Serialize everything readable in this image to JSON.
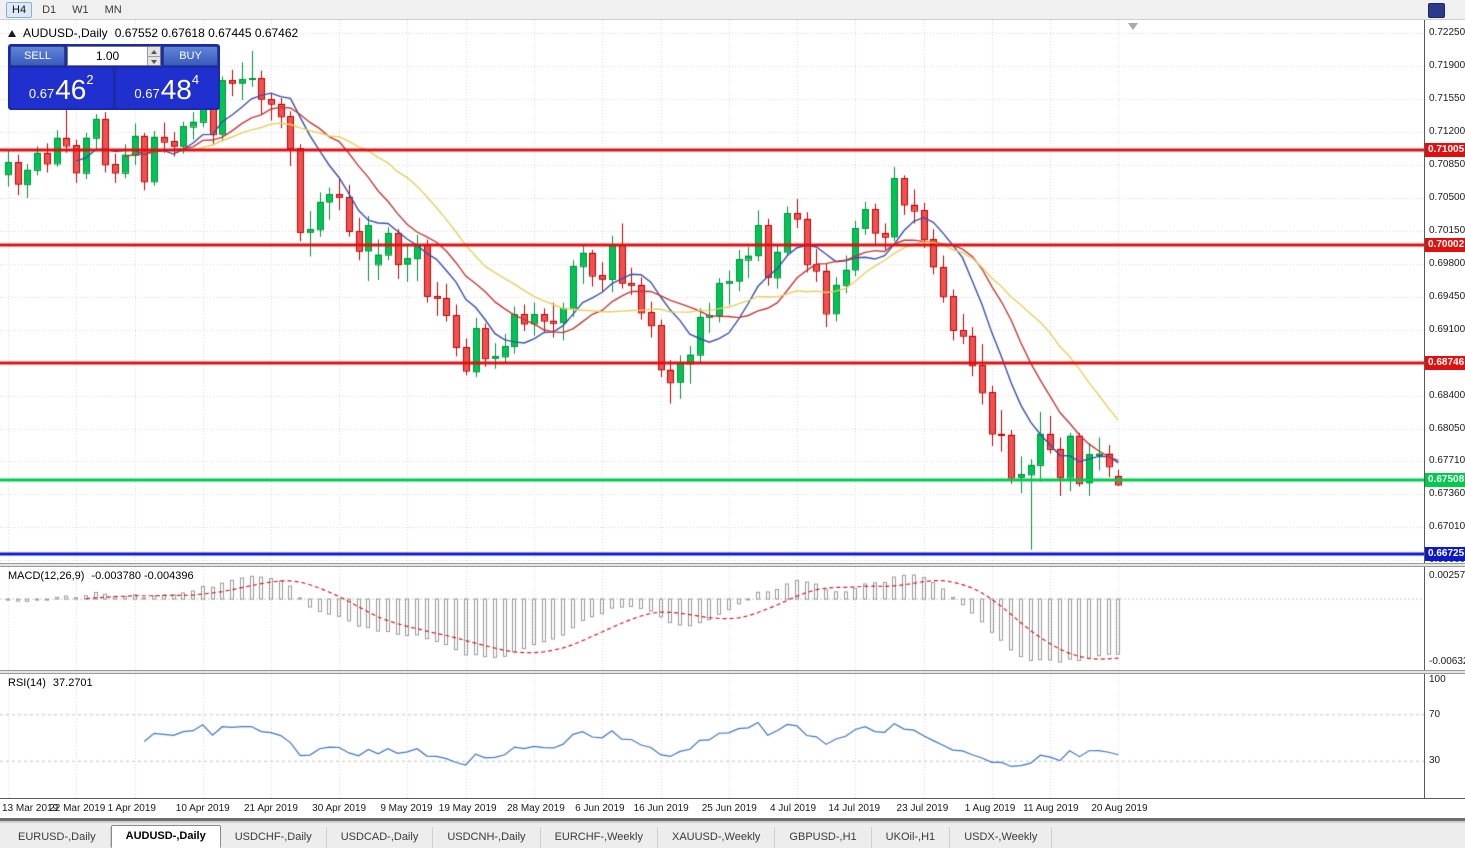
{
  "toolbar": {
    "timeframes": [
      {
        "label": "H4",
        "active": true
      },
      {
        "label": "D1",
        "active": false
      },
      {
        "label": "W1",
        "active": false
      },
      {
        "label": "MN",
        "active": false
      }
    ]
  },
  "chart_header": {
    "symbol_period": "AUDUSD-,Daily",
    "ohlc": "0.67552 0.67618 0.67445 0.67462"
  },
  "trade_panel": {
    "sell_label": "SELL",
    "buy_label": "BUY",
    "volume": "1.00",
    "sell_price": {
      "prefix": "0.67",
      "big": "46",
      "sup": "2"
    },
    "buy_price": {
      "prefix": "0.67",
      "big": "48",
      "sup": "4"
    }
  },
  "bottom_tabs": [
    {
      "label": "EURUSD-,Daily",
      "active": false
    },
    {
      "label": "AUDUSD-,Daily",
      "active": true
    },
    {
      "label": "USDCHF-,Daily",
      "active": false
    },
    {
      "label": "USDCAD-,Daily",
      "active": false
    },
    {
      "label": "USDCNH-,Daily",
      "active": false
    },
    {
      "label": "EURCHF-,Weekly",
      "active": false
    },
    {
      "label": "XAUUSD-,Weekly",
      "active": false
    },
    {
      "label": "GBPUSD-,H1",
      "active": false
    },
    {
      "label": "UKOil-,H1",
      "active": false
    },
    {
      "label": "USDX-,Weekly",
      "active": false
    }
  ],
  "chart_data": {
    "type": "candlestick",
    "symbol": "AUDUSD-",
    "timeframe": "Daily",
    "up_color": "#00c455",
    "up_border": "#00913c",
    "down_color": "#f05050",
    "down_border": "#c00000",
    "y_axis": {
      "labels": [
        "0.72250",
        "0.71900",
        "0.71550",
        "0.71200",
        "0.70850",
        "0.70500",
        "0.70150",
        "0.69800",
        "0.69450",
        "0.69100",
        "0.68750",
        "0.68400",
        "0.68050",
        "0.67710",
        "0.67360",
        "0.67010",
        "0.66660"
      ]
    },
    "x_labels": [
      {
        "text": "13 Mar 2019",
        "index": 0
      },
      {
        "text": "22 Mar 2019",
        "index": 7
      },
      {
        "text": "1 Apr 2019",
        "index": 13
      },
      {
        "text": "10 Apr 2019",
        "index": 20
      },
      {
        "text": "21 Apr 2019",
        "index": 27
      },
      {
        "text": "30 Apr 2019",
        "index": 34
      },
      {
        "text": "9 May 2019",
        "index": 41
      },
      {
        "text": "19 May 2019",
        "index": 47
      },
      {
        "text": "28 May 2019",
        "index": 54
      },
      {
        "text": "6 Jun 2019",
        "index": 61
      },
      {
        "text": "16 Jun 2019",
        "index": 67
      },
      {
        "text": "25 Jun 2019",
        "index": 74
      },
      {
        "text": "4 Jul 2019",
        "index": 81
      },
      {
        "text": "14 Jul 2019",
        "index": 87
      },
      {
        "text": "23 Jul 2019",
        "index": 94
      },
      {
        "text": "1 Aug 2019",
        "index": 101
      },
      {
        "text": "11 Aug 2019",
        "index": 107
      },
      {
        "text": "20 Aug 2019",
        "index": 114
      }
    ],
    "candles": [
      [
        0.7075,
        0.7101,
        0.7062,
        0.7088
      ],
      [
        0.7088,
        0.7096,
        0.7053,
        0.7065
      ],
      [
        0.7065,
        0.7086,
        0.705,
        0.708
      ],
      [
        0.708,
        0.7105,
        0.7074,
        0.7098
      ],
      [
        0.7098,
        0.7108,
        0.7077,
        0.7087
      ],
      [
        0.7087,
        0.7122,
        0.7083,
        0.7114
      ],
      [
        0.7114,
        0.7168,
        0.7098,
        0.7106
      ],
      [
        0.7106,
        0.7112,
        0.7066,
        0.7077
      ],
      [
        0.7077,
        0.7119,
        0.707,
        0.7114
      ],
      [
        0.7114,
        0.7139,
        0.7102,
        0.7134
      ],
      [
        0.7134,
        0.7141,
        0.7077,
        0.7086
      ],
      [
        0.7086,
        0.7097,
        0.7066,
        0.7077
      ],
      [
        0.7077,
        0.7107,
        0.7071,
        0.7096
      ],
      [
        0.7096,
        0.7129,
        0.7085,
        0.7116
      ],
      [
        0.7116,
        0.7119,
        0.7058,
        0.7068
      ],
      [
        0.7068,
        0.7121,
        0.7063,
        0.7115
      ],
      [
        0.7115,
        0.713,
        0.7098,
        0.711
      ],
      [
        0.711,
        0.712,
        0.7094,
        0.7105
      ],
      [
        0.7105,
        0.7131,
        0.7097,
        0.7126
      ],
      [
        0.7126,
        0.7141,
        0.7112,
        0.7131
      ],
      [
        0.7131,
        0.7175,
        0.7125,
        0.7167
      ],
      [
        0.7167,
        0.7173,
        0.7106,
        0.7118
      ],
      [
        0.7118,
        0.7179,
        0.711,
        0.7175
      ],
      [
        0.7175,
        0.7186,
        0.7158,
        0.7172
      ],
      [
        0.7172,
        0.7194,
        0.7154,
        0.7176
      ],
      [
        0.7176,
        0.7206,
        0.7168,
        0.7177
      ],
      [
        0.7177,
        0.7185,
        0.7138,
        0.7155
      ],
      [
        0.7155,
        0.7161,
        0.7132,
        0.715
      ],
      [
        0.715,
        0.7156,
        0.7124,
        0.7137
      ],
      [
        0.7137,
        0.7142,
        0.7084,
        0.7103
      ],
      [
        0.7103,
        0.7107,
        0.7004,
        0.7014
      ],
      [
        0.7014,
        0.7036,
        0.6988,
        0.7017
      ],
      [
        0.7017,
        0.7056,
        0.7009,
        0.7046
      ],
      [
        0.7046,
        0.7061,
        0.7027,
        0.7054
      ],
      [
        0.7054,
        0.707,
        0.7037,
        0.7051
      ],
      [
        0.7051,
        0.7064,
        0.7009,
        0.7015
      ],
      [
        0.7015,
        0.7029,
        0.6984,
        0.6994
      ],
      [
        0.6994,
        0.7031,
        0.6962,
        0.7021
      ],
      [
        0.698,
        0.7006,
        0.6963,
        0.699
      ],
      [
        0.699,
        0.7019,
        0.6984,
        0.7013
      ],
      [
        0.7013,
        0.7017,
        0.6964,
        0.698
      ],
      [
        0.698,
        0.7001,
        0.6961,
        0.6986
      ],
      [
        0.6986,
        0.7011,
        0.6962,
        0.7
      ],
      [
        0.7,
        0.7006,
        0.6939,
        0.6946
      ],
      [
        0.6946,
        0.6961,
        0.6925,
        0.6944
      ],
      [
        0.6944,
        0.6959,
        0.6919,
        0.6926
      ],
      [
        0.6926,
        0.6937,
        0.6882,
        0.6892
      ],
      [
        0.6892,
        0.6901,
        0.6862,
        0.6867
      ],
      [
        0.6866,
        0.6923,
        0.686,
        0.6912
      ],
      [
        0.6912,
        0.6917,
        0.6871,
        0.688
      ],
      [
        0.688,
        0.6896,
        0.6869,
        0.6882
      ],
      [
        0.6882,
        0.6906,
        0.6875,
        0.6893
      ],
      [
        0.6893,
        0.6935,
        0.6885,
        0.6927
      ],
      [
        0.6927,
        0.6937,
        0.6909,
        0.6917
      ],
      [
        0.6917,
        0.6939,
        0.6904,
        0.6927
      ],
      [
        0.6927,
        0.6933,
        0.6907,
        0.692
      ],
      [
        0.692,
        0.6939,
        0.6902,
        0.6918
      ],
      [
        0.6918,
        0.6939,
        0.6899,
        0.6933
      ],
      [
        0.6933,
        0.6984,
        0.6924,
        0.6978
      ],
      [
        0.6978,
        0.6999,
        0.6959,
        0.6992
      ],
      [
        0.6992,
        0.6995,
        0.6956,
        0.6968
      ],
      [
        0.6968,
        0.6982,
        0.6951,
        0.6964
      ],
      [
        0.6964,
        0.701,
        0.695,
        0.7
      ],
      [
        0.7,
        0.7023,
        0.6954,
        0.696
      ],
      [
        0.696,
        0.6976,
        0.6947,
        0.6958
      ],
      [
        0.6958,
        0.6966,
        0.6921,
        0.6929
      ],
      [
        0.6929,
        0.694,
        0.6902,
        0.6915
      ],
      [
        0.6915,
        0.6921,
        0.686,
        0.6868
      ],
      [
        0.6868,
        0.6878,
        0.6832,
        0.6855
      ],
      [
        0.6855,
        0.6883,
        0.6837,
        0.6875
      ],
      [
        0.6875,
        0.6893,
        0.6853,
        0.6884
      ],
      [
        0.6884,
        0.6933,
        0.6876,
        0.6924
      ],
      [
        0.6924,
        0.6939,
        0.6907,
        0.6926
      ],
      [
        0.6926,
        0.6965,
        0.6918,
        0.696
      ],
      [
        0.696,
        0.6973,
        0.6937,
        0.6962
      ],
      [
        0.6962,
        0.6995,
        0.6951,
        0.6985
      ],
      [
        0.6985,
        0.6998,
        0.6965,
        0.6989
      ],
      [
        0.6989,
        0.7037,
        0.6983,
        0.7021
      ],
      [
        0.7021,
        0.7028,
        0.6957,
        0.6966
      ],
      [
        0.6966,
        0.7,
        0.6954,
        0.6993
      ],
      [
        0.6993,
        0.7041,
        0.6989,
        0.7034
      ],
      [
        0.7034,
        0.7049,
        0.7018,
        0.7028
      ],
      [
        0.7028,
        0.7035,
        0.6971,
        0.698
      ],
      [
        0.698,
        0.6996,
        0.6961,
        0.6973
      ],
      [
        0.6973,
        0.6981,
        0.6913,
        0.6928
      ],
      [
        0.6928,
        0.6966,
        0.6919,
        0.6958
      ],
      [
        0.6958,
        0.6989,
        0.6949,
        0.6974
      ],
      [
        0.6974,
        0.7026,
        0.6967,
        0.7018
      ],
      [
        0.7018,
        0.7046,
        0.7011,
        0.7038
      ],
      [
        0.7038,
        0.7044,
        0.6999,
        0.7013
      ],
      [
        0.7013,
        0.7023,
        0.6995,
        0.7009
      ],
      [
        0.7009,
        0.7083,
        0.7004,
        0.7071
      ],
      [
        0.7071,
        0.7074,
        0.7032,
        0.7043
      ],
      [
        0.7043,
        0.7059,
        0.7023,
        0.7037
      ],
      [
        0.7037,
        0.7045,
        0.6997,
        0.7006
      ],
      [
        0.7006,
        0.7017,
        0.6969,
        0.6977
      ],
      [
        0.6977,
        0.6989,
        0.6939,
        0.6946
      ],
      [
        0.6946,
        0.6953,
        0.6899,
        0.691
      ],
      [
        0.691,
        0.6927,
        0.6895,
        0.6904
      ],
      [
        0.6904,
        0.6913,
        0.6861,
        0.6873
      ],
      [
        0.6873,
        0.6895,
        0.6831,
        0.6844
      ],
      [
        0.6844,
        0.6851,
        0.6787,
        0.68
      ],
      [
        0.68,
        0.6825,
        0.6781,
        0.6799
      ],
      [
        0.6799,
        0.6804,
        0.6747,
        0.6754
      ],
      [
        0.6754,
        0.6776,
        0.6737,
        0.6757
      ],
      [
        0.6757,
        0.6773,
        0.6677,
        0.6767
      ],
      [
        0.6767,
        0.6823,
        0.6749,
        0.68
      ],
      [
        0.68,
        0.6819,
        0.6779,
        0.6784
      ],
      [
        0.6784,
        0.6796,
        0.6734,
        0.6754
      ],
      [
        0.6754,
        0.6801,
        0.6739,
        0.6798
      ],
      [
        0.6798,
        0.6801,
        0.6744,
        0.6748
      ],
      [
        0.6748,
        0.679,
        0.6734,
        0.6778
      ],
      [
        0.6778,
        0.6796,
        0.6761,
        0.6779
      ],
      [
        0.6779,
        0.6788,
        0.6754,
        0.6766
      ],
      [
        0.67552,
        0.67618,
        0.67445,
        0.67462
      ]
    ],
    "moving_averages": [
      {
        "period": 8,
        "color": "#3b4fa8"
      },
      {
        "period": 13,
        "color": "#c43939"
      },
      {
        "period": 20,
        "color": "#e5d05e"
      }
    ],
    "hlines": [
      {
        "price": 0.71005,
        "label": "0.71005",
        "color": "#e01010",
        "width": 3
      },
      {
        "price": 0.70002,
        "label": "0.70002",
        "color": "#e01010",
        "width": 3
      },
      {
        "price": 0.68746,
        "label": "0.68746",
        "color": "#e01010",
        "width": 3
      },
      {
        "price": 0.67508,
        "label": "0.67508",
        "color": "#00ca4e",
        "width": 3
      },
      {
        "price": 0.66725,
        "label": "0.66725",
        "color": "#0d18c8",
        "width": 3
      }
    ],
    "indicators": [
      {
        "name": "MACD",
        "label": "MACD(12,26,9)",
        "values_text": "-0.003780 -0.004396",
        "fast": 12,
        "slow": 26,
        "signal": 9,
        "scale_labels": [
          "0.0025740",
          "-0.0063260"
        ],
        "histogram_color": "#9a9a9a",
        "signal_color": "#cc2222"
      },
      {
        "name": "RSI",
        "label": "RSI(14)",
        "value_text": "37.2701",
        "period": 14,
        "scale_labels": [
          "100",
          "70",
          "30"
        ],
        "levels": [
          70,
          30
        ],
        "line_color": "#3f76bc"
      }
    ]
  }
}
